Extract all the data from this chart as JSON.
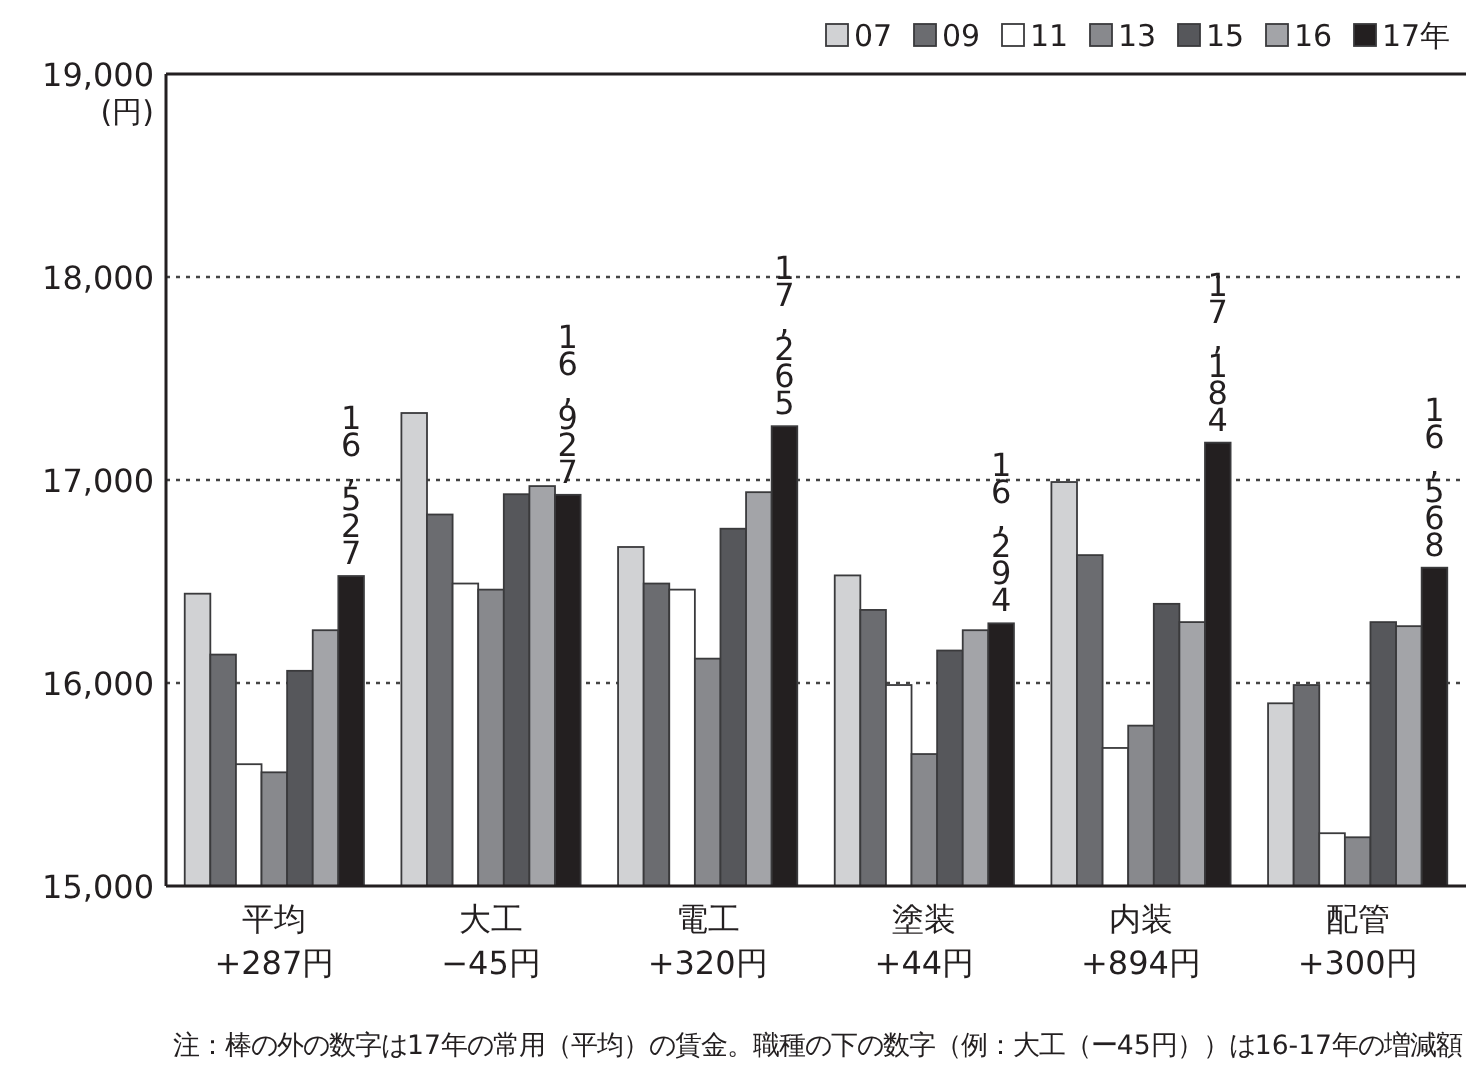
{
  "chart_data": {
    "type": "bar",
    "categories": [
      "平均\n+287円",
      "大工\n−45円",
      "電工\n+320円",
      "塗装\n+44円",
      "内装\n+894円",
      "配管\n+300円"
    ],
    "ylabel": "(円)",
    "ylim": [
      15000,
      19000
    ],
    "yticks": [
      {
        "value": 15000,
        "label": "15,000"
      },
      {
        "value": 16000,
        "label": "16,000"
      },
      {
        "value": 17000,
        "label": "17,000"
      },
      {
        "value": 18000,
        "label": "18,000"
      },
      {
        "value": 19000,
        "label": "19,000"
      }
    ],
    "grid": "y",
    "legend": "top right",
    "series": [
      {
        "name": "07",
        "color": "#d1d2d4",
        "values": [
          16440,
          17330,
          16670,
          16530,
          16990,
          15900
        ]
      },
      {
        "name": "09",
        "color": "#6b6c70",
        "values": [
          16140,
          16830,
          16490,
          16360,
          16630,
          15990
        ]
      },
      {
        "name": "11",
        "color": "#ffffff",
        "values": [
          15600,
          16490,
          16460,
          15990,
          15680,
          15260
        ]
      },
      {
        "name": "13",
        "color": "#88898d",
        "values": [
          15560,
          16460,
          16120,
          15650,
          15790,
          15240
        ]
      },
      {
        "name": "15",
        "color": "#56575b",
        "values": [
          16060,
          16930,
          16760,
          16160,
          16390,
          16300
        ]
      },
      {
        "name": "16",
        "color": "#a3a4a8",
        "values": [
          16260,
          16970,
          16940,
          16260,
          16300,
          16280
        ]
      },
      {
        "name": "17年",
        "color": "#231f20",
        "values": [
          16527,
          16927,
          17265,
          16294,
          17184,
          16568
        ],
        "value_labels": [
          "16,527",
          "16,927",
          "17,265",
          "16,294",
          "17,184",
          "16,568"
        ]
      }
    ],
    "annotations": [
      "注：棒の外の数字は17年の常用（平均）の賃金。職種の下の数字（例：大工（ー45円））は16-17年の増減額"
    ]
  }
}
